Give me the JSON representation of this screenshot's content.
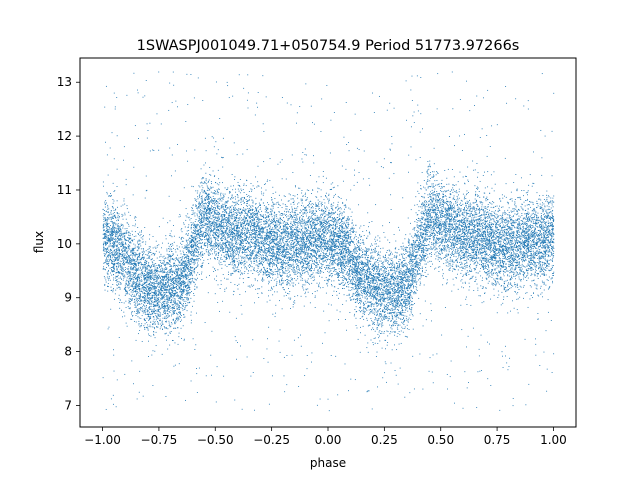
{
  "chart_data": {
    "type": "scatter",
    "title": "1SWASPJ001049.71+050754.9 Period 51773.97266s",
    "xlabel": "phase",
    "ylabel": "flux",
    "xlim": [
      -1.1,
      1.1
    ],
    "ylim": [
      6.6,
      13.45
    ],
    "xticks": [
      -1.0,
      -0.75,
      -0.5,
      -0.25,
      0.0,
      0.25,
      0.5,
      0.75,
      1.0
    ],
    "xtick_labels": [
      "−1.00",
      "−0.75",
      "−0.50",
      "−0.25",
      "0.00",
      "0.25",
      "0.50",
      "0.75",
      "1.00"
    ],
    "yticks": [
      7,
      8,
      9,
      10,
      11,
      12,
      13
    ],
    "ytick_labels": [
      "7",
      "8",
      "9",
      "10",
      "11",
      "12",
      "13"
    ],
    "grid": false,
    "marker_color": "#1f77b4",
    "profile_phase": [
      0.0,
      0.05,
      0.1,
      0.15,
      0.2,
      0.25,
      0.3,
      0.35,
      0.4,
      0.45,
      0.5,
      0.55,
      0.6,
      0.65,
      0.7,
      0.75,
      0.8,
      0.85,
      0.9,
      0.95,
      1.0
    ],
    "profile_flux": [
      10.1,
      10.0,
      9.7,
      9.4,
      9.2,
      9.1,
      9.15,
      9.3,
      9.9,
      10.55,
      10.4,
      10.25,
      10.15,
      10.2,
      10.1,
      10.0,
      9.95,
      10.0,
      10.05,
      10.1,
      10.1
    ],
    "scatter_sigma": 0.4,
    "outlier_fraction": 0.04,
    "n_points_per_cycle": 9000
  }
}
